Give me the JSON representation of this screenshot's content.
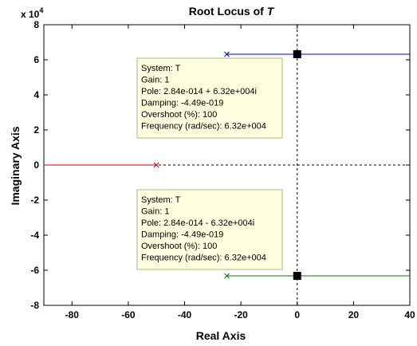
{
  "chart_data": {
    "type": "line",
    "title": "Root Locus of ",
    "title_var": "T",
    "xlabel": "Real Axis",
    "ylabel": "Imaginary Axis",
    "y_multiplier": "x 10",
    "y_multiplier_exp": "4",
    "xlim": [
      -90,
      40
    ],
    "ylim": [
      -8,
      8
    ],
    "xticks": [
      -80,
      -60,
      -40,
      -20,
      0,
      20,
      40
    ],
    "xtick_labels": [
      "-80",
      "-60",
      "-40",
      "-20",
      "0",
      "20",
      "40"
    ],
    "yticks": [
      -8,
      -6,
      -4,
      -2,
      0,
      2,
      4,
      6,
      8
    ],
    "ytick_labels": [
      "-8",
      "-6",
      "-4",
      "-2",
      "0",
      "2",
      "4",
      "6",
      "8"
    ],
    "grid": false,
    "reference_line": {
      "y": 0,
      "style": "dashed",
      "color": "#000000"
    },
    "series": [
      {
        "color": "#0000cc",
        "points": [
          [
            -25,
            6.32
          ],
          [
            40,
            6.32
          ]
        ]
      },
      {
        "color": "#008000",
        "points": [
          [
            -25,
            -6.32
          ],
          [
            40,
            -6.32
          ]
        ]
      },
      {
        "color": "#cc0000",
        "points": [
          [
            -90,
            0
          ],
          [
            -50,
            0
          ]
        ]
      }
    ],
    "poles": [
      [
        -25,
        6.32
      ],
      [
        -25,
        -6.32
      ],
      [
        -50,
        0
      ]
    ],
    "selected_points": [
      [
        0,
        6.32
      ],
      [
        0,
        -6.32
      ]
    ],
    "datatips": [
      {
        "lines": [
          "System: T",
          "Gain: 1",
          "Pole: 2.84e-014 + 6.32e+004i",
          "Damping: -4.49e-019",
          "Overshoot (%): 100",
          "Frequency (rad/sec): 6.32e+004"
        ],
        "anchor": [
          0,
          6.32
        ]
      },
      {
        "lines": [
          "System: T",
          "Gain: 1",
          "Pole: 2.84e-014 - 6.32e+004i",
          "Damping: -4.49e-019",
          "Overshoot (%): 100",
          "Frequency (rad/sec): 6.32e+004"
        ],
        "anchor": [
          0,
          -6.32
        ]
      }
    ]
  }
}
